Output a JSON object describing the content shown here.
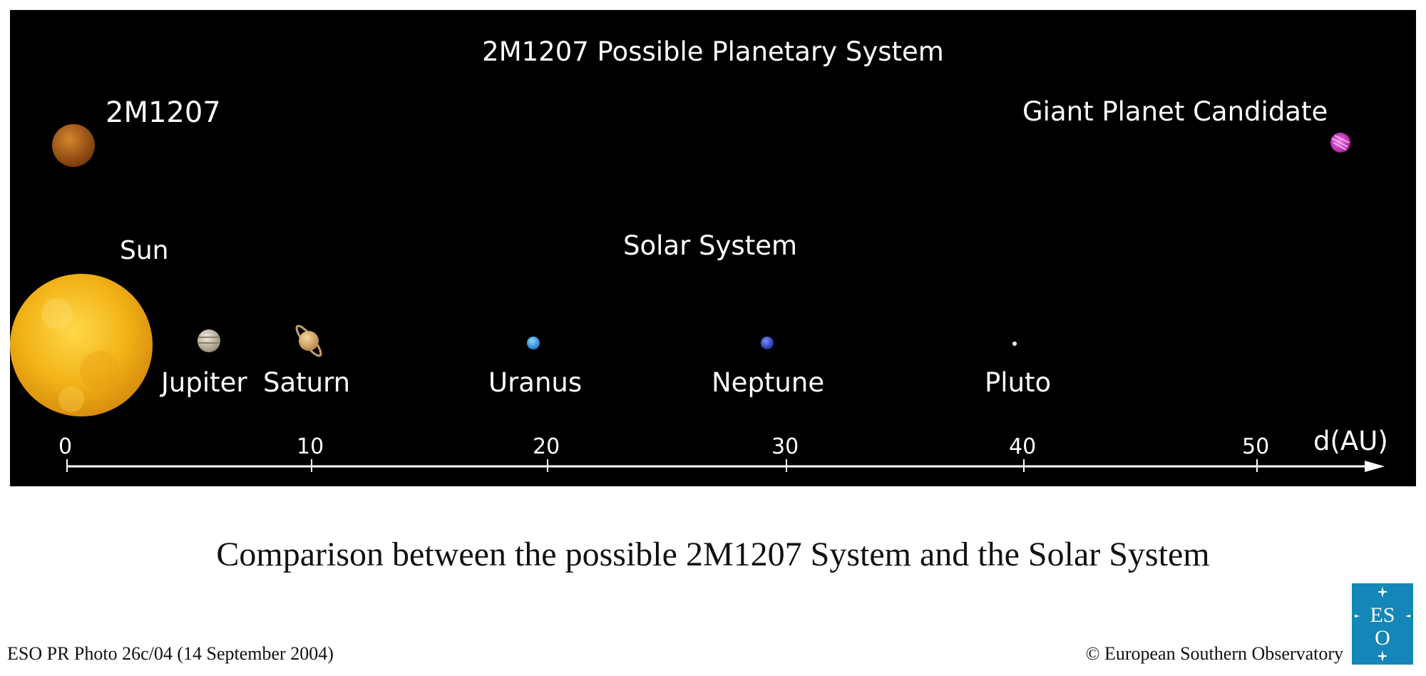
{
  "diagram": {
    "title": "2M1207 Possible Planetary System",
    "system_2m1207": {
      "host_label": "2M1207",
      "companion_label": "Giant Planet Candidate"
    },
    "solar_system": {
      "section_label": "Solar System",
      "sun_label": "Sun",
      "planets": [
        {
          "name": "Jupiter",
          "distance_au": 5.2,
          "icon": "jupiter-icon"
        },
        {
          "name": "Saturn",
          "distance_au": 9.5,
          "icon": "saturn-icon"
        },
        {
          "name": "Uranus",
          "distance_au": 19.2,
          "icon": "uranus-icon"
        },
        {
          "name": "Neptune",
          "distance_au": 30.1,
          "icon": "neptune-icon"
        },
        {
          "name": "Pluto",
          "distance_au": 39.5,
          "icon": "pluto-icon"
        }
      ]
    },
    "axis": {
      "label": "d(AU)",
      "ticks": [
        "0",
        "10",
        "20",
        "30",
        "40",
        "50"
      ]
    },
    "colors": {
      "background": "#000000",
      "sun": "#f2b418",
      "host": "#a85a14",
      "candidate": "#d238c8",
      "uranus": "#2f9fe8",
      "neptune": "#3a56d8"
    }
  },
  "caption": "Comparison between the possible 2M1207 System and the Solar System",
  "footer": {
    "photo_id": "ESO PR Photo 26c/04 (14 September 2004)",
    "copyright": "© European Southern Observatory"
  },
  "logo": {
    "text_top": "ES",
    "text_bottom": "O"
  }
}
